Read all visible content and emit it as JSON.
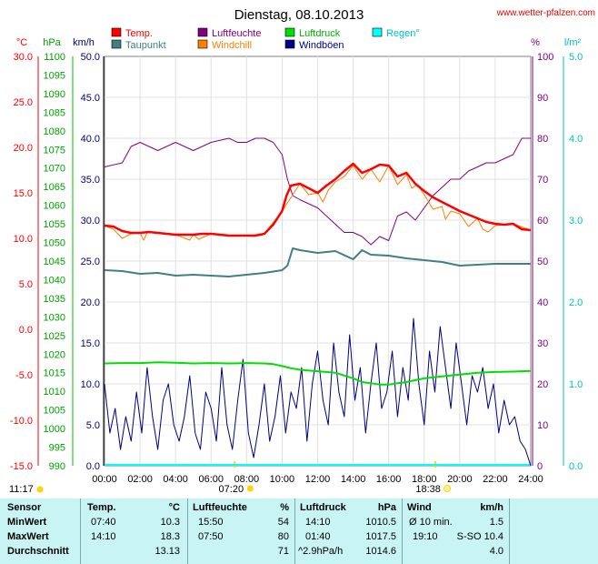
{
  "chart_data": {
    "type": "line",
    "title": "Dienstag, 08.10.2013",
    "source": "www.wetter-pfalzen.com",
    "x_ticks": [
      "00:00",
      "02:00",
      "04:00",
      "06:00",
      "08:00",
      "10:00",
      "12:00",
      "14:00",
      "16:00",
      "18:00",
      "20:00",
      "22:00",
      "24:00"
    ],
    "sunrise": "07:20",
    "sunset": "18:38",
    "daylength": "11:17",
    "axes": {
      "temp": {
        "label": "°C",
        "range": [
          -15,
          30
        ],
        "ticks": [
          "30.0",
          "25.0",
          "20.0",
          "15.0",
          "10.0",
          "5.0",
          "0.0",
          "-5.0",
          "-10.0",
          "-15.0"
        ],
        "color": "#ff0000"
      },
      "hpa": {
        "label": "hPa",
        "range": [
          990,
          1100
        ],
        "ticks": [
          "1100",
          "1095",
          "1090",
          "1085",
          "1080",
          "1075",
          "1070",
          "1065",
          "1060",
          "1055",
          "1050",
          "1045",
          "1040",
          "1035",
          "1030",
          "1025",
          "1020",
          "1015",
          "1010",
          "1005",
          "1000",
          "995",
          "990"
        ],
        "color": "#00c000"
      },
      "kmh": {
        "label": "km/h",
        "range": [
          0,
          50
        ],
        "ticks": [
          "50.0",
          "45.0",
          "40.0",
          "35.0",
          "30.0",
          "25.0",
          "20.0",
          "15.0",
          "10.0",
          "5.0",
          "0.0"
        ],
        "color": "#000080"
      },
      "pct": {
        "label": "%",
        "range": [
          0,
          100
        ],
        "ticks": [
          "100",
          "90",
          "80",
          "70",
          "60",
          "50",
          "40",
          "30",
          "20",
          "10",
          "0"
        ],
        "color": "#800080"
      },
      "rain": {
        "label": "l/m²",
        "range": [
          0,
          5
        ],
        "ticks": [
          "5.0",
          "4.0",
          "3.0",
          "2.0",
          "1.0",
          "0.0"
        ],
        "color": "#00c0c0"
      }
    },
    "legend": [
      {
        "name": "Temp.",
        "color": "#ff0000"
      },
      {
        "name": "Luftfeuchte",
        "color": "#800080"
      },
      {
        "name": "Luftdruck",
        "color": "#00e000"
      },
      {
        "name": "Regen°",
        "color": "#00ffff"
      },
      {
        "name": "Taupunkt",
        "color": "#408080"
      },
      {
        "name": "Windchill",
        "color": "#ff8000"
      },
      {
        "name": "Windböen",
        "color": "#000080"
      }
    ],
    "series": [
      {
        "name": "Temp.",
        "axis": "temp",
        "x": [
          0,
          0.5,
          1,
          1.5,
          2,
          2.5,
          3,
          3.5,
          4,
          4.5,
          5,
          5.5,
          6,
          6.5,
          7,
          7.5,
          8,
          8.5,
          9,
          9.5,
          10,
          10.25,
          10.5,
          11,
          11.5,
          12,
          12.5,
          13,
          13.5,
          14,
          14.5,
          15,
          15.5,
          16,
          16.5,
          17,
          17.5,
          18,
          18.5,
          19,
          19.5,
          20,
          20.5,
          21,
          21.5,
          22,
          22.5,
          23,
          23.5,
          24
        ],
        "y": [
          11.4,
          11.3,
          10.8,
          10.6,
          10.6,
          10.7,
          10.6,
          10.5,
          10.4,
          10.4,
          10.4,
          10.5,
          10.5,
          10.4,
          10.3,
          10.3,
          10.3,
          10.3,
          10.5,
          11.5,
          13.0,
          14.7,
          15.8,
          16.0,
          15.5,
          15.0,
          15.8,
          16.5,
          17.4,
          18.2,
          17.2,
          17.6,
          18.1,
          18.0,
          16.8,
          17.2,
          16.0,
          15.2,
          14.5,
          14.0,
          13.5,
          13.0,
          12.6,
          12.2,
          11.8,
          11.6,
          11.5,
          11.6,
          11.0,
          10.9
        ]
      },
      {
        "name": "Taupunkt",
        "axis": "temp",
        "x": [
          0,
          1,
          2,
          3,
          4,
          5,
          6,
          7,
          8,
          9,
          10,
          10.3,
          10.6,
          11,
          12,
          13,
          14,
          14.5,
          15,
          16,
          17,
          18,
          19,
          20,
          21,
          22,
          23,
          24
        ],
        "y": [
          6.5,
          6.4,
          6.1,
          6.2,
          5.9,
          6.0,
          5.9,
          5.8,
          6.0,
          6.2,
          6.5,
          7.0,
          8.9,
          8.7,
          8.4,
          8.6,
          7.7,
          8.7,
          8.2,
          8.1,
          7.8,
          7.6,
          7.4,
          7.0,
          7.1,
          7.2,
          7.2,
          7.2
        ]
      },
      {
        "name": "Windchill",
        "axis": "temp",
        "x": [
          0,
          0.5,
          1,
          1.5,
          2,
          2.2,
          2.4,
          3,
          4,
          4.8,
          5,
          5.3,
          6,
          7,
          8,
          9,
          10,
          11,
          11.5,
          12,
          12.3,
          12.6,
          13,
          13.5,
          14,
          14.5,
          15,
          15.5,
          16,
          16.5,
          17,
          17.3,
          17.6,
          18,
          18.5,
          19,
          19.2,
          19.5,
          20,
          20.5,
          21,
          21.3,
          21.6,
          22,
          23,
          24
        ],
        "y": [
          11.4,
          11.0,
          10.0,
          10.5,
          10.6,
          9.8,
          10.6,
          10.6,
          10.4,
          9.8,
          10.4,
          9.9,
          10.5,
          10.3,
          10.3,
          10.5,
          13.0,
          16.0,
          14.8,
          15.0,
          14.0,
          15.3,
          16.2,
          16.8,
          18.0,
          16.5,
          17.6,
          16.2,
          18.0,
          15.9,
          17.0,
          15.5,
          15.9,
          14.8,
          13.2,
          13.5,
          12.1,
          13.0,
          12.7,
          11.3,
          12.2,
          11.0,
          10.7,
          11.4,
          11.6,
          10.9
        ]
      },
      {
        "name": "Luftfeuchte",
        "axis": "pct",
        "x": [
          0,
          1,
          1.5,
          2,
          2.5,
          3,
          3.5,
          4,
          4.5,
          5,
          6,
          7,
          7.5,
          8,
          8.5,
          9,
          9.5,
          10,
          10.3,
          10.6,
          11,
          11.5,
          12,
          12.5,
          13,
          13.5,
          14,
          14.5,
          15,
          15.5,
          16,
          16.5,
          17,
          17.5,
          18,
          18.5,
          19,
          19.5,
          20,
          20.5,
          21,
          21.5,
          22,
          22.5,
          23,
          23.5,
          24
        ],
        "y": [
          73,
          74,
          78,
          79,
          78,
          77,
          78,
          79,
          78,
          77,
          79,
          80,
          79,
          79,
          80,
          80,
          79,
          76,
          70,
          66,
          65,
          64,
          63,
          61,
          59,
          57,
          57,
          56,
          54,
          56,
          55,
          61,
          62,
          60,
          63,
          66,
          68,
          70,
          70,
          72,
          73,
          74,
          74,
          75,
          76,
          80,
          80
        ]
      },
      {
        "name": "Luftdruck",
        "axis": "hpa",
        "x": [
          0,
          1,
          2,
          3,
          4,
          5,
          6,
          7,
          8,
          9,
          9.5,
          10,
          10.5,
          11,
          12,
          13,
          14,
          14.5,
          15,
          15.5,
          16,
          16.5,
          17,
          17.5,
          18,
          19,
          20,
          21,
          22,
          23,
          24
        ],
        "y": [
          1017.5,
          1017.6,
          1017.6,
          1017.8,
          1017.7,
          1017.5,
          1017.6,
          1017.5,
          1017.6,
          1017.5,
          1017.3,
          1016.8,
          1016.2,
          1015.8,
          1015.4,
          1015.0,
          1013.5,
          1012.5,
          1012.2,
          1011.8,
          1011.8,
          1012.2,
          1012.5,
          1013.0,
          1013.5,
          1014.0,
          1014.5,
          1015.0,
          1015.2,
          1015.3,
          1015.5
        ]
      },
      {
        "name": "Windböen",
        "axis": "kmh",
        "x": [
          0,
          0.3,
          0.6,
          0.9,
          1.2,
          1.5,
          1.8,
          2.1,
          2.4,
          2.7,
          3,
          3.3,
          3.6,
          3.9,
          4.2,
          4.5,
          4.8,
          5.1,
          5.4,
          5.7,
          6,
          6.3,
          6.6,
          6.9,
          7.2,
          7.5,
          7.8,
          8.1,
          8.4,
          8.7,
          9,
          9.3,
          9.6,
          9.9,
          10.2,
          10.5,
          10.8,
          11.1,
          11.4,
          11.7,
          12,
          12.3,
          12.6,
          12.9,
          13.2,
          13.5,
          13.8,
          14.1,
          14.4,
          14.7,
          15,
          15.3,
          15.6,
          15.9,
          16.2,
          16.5,
          16.8,
          17.1,
          17.4,
          17.7,
          18,
          18.3,
          18.6,
          18.9,
          19.2,
          19.5,
          19.8,
          20.1,
          20.4,
          20.7,
          21,
          21.3,
          21.6,
          21.9,
          22.2,
          22.5,
          22.8,
          23.1,
          23.4,
          23.7,
          24
        ],
        "y": [
          10,
          4,
          7,
          2,
          6,
          3,
          9,
          4,
          12,
          6,
          2,
          8,
          10,
          5,
          3,
          6,
          11,
          4,
          2,
          9,
          7,
          3,
          12,
          5,
          2,
          8,
          13,
          4,
          1,
          5,
          10,
          3,
          6,
          11,
          4,
          9,
          7,
          12,
          3,
          10,
          14,
          8,
          5,
          15,
          9,
          6,
          16,
          8,
          12,
          4,
          10,
          15,
          7,
          9,
          14,
          6,
          12,
          8,
          18,
          10,
          5,
          14,
          9,
          17,
          12,
          7,
          15,
          10,
          5,
          11,
          9,
          12,
          7,
          10,
          4,
          8,
          5,
          6,
          3,
          2,
          0
        ]
      }
    ]
  },
  "stats": {
    "headers": {
      "sensor": "Sensor",
      "temp": "Temp.",
      "temp_unit": "°C",
      "hum": "Luftfeuchte",
      "hum_unit": "%",
      "press": "Luftdruck",
      "press_unit": "hPa",
      "wind": "Wind",
      "wind_unit": "km/h"
    },
    "rows": [
      {
        "label": "MinWert",
        "temp_time": "07:40",
        "temp_val": "10.3",
        "hum_time": "15:50",
        "hum_val": "54",
        "press_time": "14:10",
        "press_val": "1010.5",
        "wind_time": "Ø 10 min.",
        "wind_val": "1.5"
      },
      {
        "label": "MaxWert",
        "temp_time": "14:10",
        "temp_val": "18.3",
        "hum_time": "07:50",
        "hum_val": "80",
        "press_time": "01:40",
        "press_val": "1017.5",
        "wind_time": "19:10",
        "wind_val": "S-SO 10.4"
      },
      {
        "label": "Durchschnitt",
        "temp_time": "",
        "temp_val": "13.13",
        "hum_time": "",
        "hum_val": "71",
        "press_time": "^2.9hPa/h",
        "press_val": "1014.6",
        "wind_time": "",
        "wind_val": "4.0"
      }
    ]
  }
}
